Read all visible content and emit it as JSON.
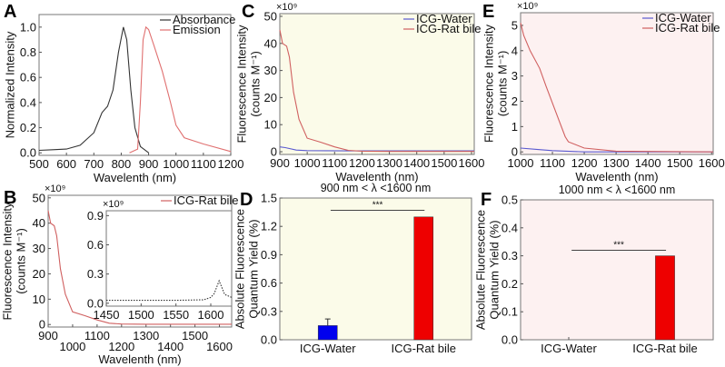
{
  "colors": {
    "absorbance": "#333333",
    "emission": "#e07070",
    "water": "#5a5ad0",
    "bile": "#d06060",
    "bar_water": "#0000ee",
    "bar_bile": "#ee0000",
    "bg_cd": "#fbfbe9",
    "bg_ef": "#fdf1f1",
    "inset_line": "#333333"
  },
  "inset_photo": "cuvette-photo",
  "chart_data": [
    {
      "id": "A",
      "letter": "A",
      "type": "line",
      "xlabel": "Wavelenth (nm)",
      "ylabel": [
        "Normalized Intensity"
      ],
      "multiplier": "",
      "xlim": [
        500,
        1200
      ],
      "ylim": [
        -0.02,
        1.1
      ],
      "xticks": [
        "500",
        "600",
        "700",
        "800",
        "900",
        "1000",
        "1100",
        "1200"
      ],
      "yticks": [
        "0.0",
        "0.2",
        "0.4",
        "0.6",
        "0.8",
        "1.0"
      ],
      "legend": [
        "Absorbance",
        "Emission"
      ],
      "legend_position": "top-right",
      "series": [
        {
          "name": "Absorbance",
          "color": "absorbance",
          "x": [
            500,
            550,
            600,
            650,
            700,
            730,
            750,
            770,
            790,
            808,
            820,
            835,
            850,
            870,
            900
          ],
          "y": [
            0.02,
            0.025,
            0.03,
            0.06,
            0.16,
            0.32,
            0.37,
            0.5,
            0.8,
            1.0,
            0.9,
            0.5,
            0.2,
            0.05,
            0.0
          ]
        },
        {
          "name": "Emission",
          "color": "emission",
          "x": [
            830,
            860,
            870,
            880,
            890,
            900,
            920,
            950,
            980,
            1000,
            1030,
            1100,
            1200
          ],
          "y": [
            0,
            0.03,
            0.4,
            0.9,
            1.0,
            0.98,
            0.85,
            0.65,
            0.4,
            0.22,
            0.12,
            0.07,
            0.01
          ]
        }
      ]
    },
    {
      "id": "B",
      "letter": "B",
      "type": "line",
      "xlabel": "Wavelenth (nm)",
      "ylabel": [
        "Fluorescence Intensity",
        "(counts M⁻¹)"
      ],
      "multiplier": "×10⁹",
      "xlim": [
        900,
        1650
      ],
      "ylim": [
        -1,
        51
      ],
      "xticks": [
        "900",
        "1000",
        "1100",
        "1200",
        "1300",
        "1400",
        "1500",
        "1600"
      ],
      "yticks": [
        "0",
        "10",
        "20",
        "30",
        "40",
        "50"
      ],
      "legend": [
        "ICG-Rat bile"
      ],
      "legend_position": "top-right",
      "series": [
        {
          "name": "ICG-Rat bile",
          "color": "bile",
          "x": [
            900,
            910,
            925,
            935,
            950,
            970,
            1000,
            1050,
            1100,
            1150,
            1200,
            1300,
            1650
          ],
          "y": [
            45,
            40,
            39,
            35,
            22,
            12,
            5,
            3.5,
            1.8,
            0.5,
            0.2,
            0.1,
            0.1
          ]
        }
      ]
    },
    {
      "id": "Binset",
      "letter": "",
      "type": "line",
      "xlabel": "",
      "ylabel": [],
      "multiplier": "×10⁹",
      "xlim": [
        1450,
        1630
      ],
      "ylim": [
        -0.03,
        0.95
      ],
      "xticks": [
        "1450",
        "1500",
        "1550",
        "1600"
      ],
      "yticks": [
        "0.0",
        "0.3",
        "0.6",
        "0.9"
      ],
      "legend": [],
      "series": [
        {
          "name": "",
          "color": "inset_line",
          "x": [
            1450,
            1500,
            1550,
            1590,
            1600,
            1605,
            1612,
            1620,
            1630
          ],
          "y": [
            0.03,
            0.03,
            0.03,
            0.035,
            0.06,
            0.1,
            0.23,
            0.09,
            0.06
          ]
        }
      ]
    },
    {
      "id": "C",
      "letter": "C",
      "type": "line",
      "xlabel": "Wavelenth (nm)",
      "ylabel": [
        "Fluorescence Intensity",
        "(counts M⁻¹)"
      ],
      "multiplier": "×10⁹",
      "xlim": [
        900,
        1610
      ],
      "ylim": [
        -1,
        51
      ],
      "xticks": [
        "900",
        "1000",
        "1100",
        "1200",
        "1300",
        "1400",
        "1500",
        "1600"
      ],
      "yticks": [
        "0",
        "10",
        "20",
        "30",
        "40",
        "50"
      ],
      "legend": [
        "ICG-Water",
        "ICG-Rat bile"
      ],
      "legend_position": "top-right",
      "background": "bg_cd",
      "series": [
        {
          "name": "ICG-Water",
          "color": "water",
          "x": [
            900,
            920,
            960,
            1000,
            1200,
            1610
          ],
          "y": [
            1.8,
            1.5,
            0.6,
            0.4,
            0.3,
            0.3
          ]
        },
        {
          "name": "ICG-Rat bile",
          "color": "bile",
          "x": [
            900,
            910,
            925,
            935,
            950,
            970,
            1000,
            1050,
            1100,
            1150,
            1200,
            1300,
            1610
          ],
          "y": [
            45,
            40,
            39,
            35,
            22,
            12,
            5,
            3.5,
            1.8,
            0.5,
            0.2,
            0.1,
            0.1
          ]
        }
      ]
    },
    {
      "id": "D",
      "letter": "D",
      "type": "bar",
      "title": "900 nm < λ <1600 nm",
      "xlabel": "",
      "ylabel": [
        "Absolute Fluorescence",
        "Quantum Yield (%)"
      ],
      "multiplier": "",
      "ylim": [
        0,
        1.5
      ],
      "yticks": [
        "0.0",
        "0.3",
        "0.6",
        "0.9",
        "1.2",
        "1.5"
      ],
      "categories": [
        "ICG-Water",
        "ICG-Rat bile"
      ],
      "values": [
        0.15,
        1.3
      ],
      "errors": [
        0.07,
        0
      ],
      "bar_colors": [
        "bar_water",
        "bar_bile"
      ],
      "significance": "***",
      "sig_level": 1.37,
      "background": "bg_cd"
    },
    {
      "id": "E",
      "letter": "E",
      "type": "line",
      "xlabel": "Wavelenth (nm)",
      "ylabel": [
        "Fluorescence Intensity",
        "(counts M⁻¹)"
      ],
      "multiplier": "×10⁹",
      "xlim": [
        1000,
        1605
      ],
      "ylim": [
        -0.1,
        5.5
      ],
      "xticks": [
        "1000",
        "1100",
        "1200",
        "1300",
        "1400",
        "1500",
        "1600"
      ],
      "yticks": [
        "0",
        "1",
        "2",
        "3",
        "4",
        "5"
      ],
      "legend": [
        "ICG-Water",
        "ICG-Rat bile"
      ],
      "legend_position": "top-right",
      "background": "bg_ef",
      "series": [
        {
          "name": "ICG-Water",
          "color": "water",
          "x": [
            1000,
            1050,
            1100,
            1200,
            1605
          ],
          "y": [
            0.15,
            0.1,
            0.05,
            0.0,
            0.0
          ]
        },
        {
          "name": "ICG-Rat bile",
          "color": "bile",
          "x": [
            1000,
            1010,
            1030,
            1060,
            1080,
            1110,
            1140,
            1150,
            1200,
            1300,
            1605
          ],
          "y": [
            5.1,
            4.6,
            4.0,
            3.3,
            2.6,
            1.6,
            0.6,
            0.4,
            0.15,
            0.03,
            0.0
          ]
        }
      ]
    },
    {
      "id": "F",
      "letter": "F",
      "type": "bar",
      "title": "1000 nm < λ <1600 nm",
      "xlabel": "",
      "ylabel": [
        "Absolute Fluorescence",
        "Quantum Yield (%)"
      ],
      "multiplier": "",
      "ylim": [
        0,
        0.5
      ],
      "yticks": [
        "0.0",
        "0.1",
        "0.2",
        "0.3",
        "0.4",
        "0.5"
      ],
      "categories": [
        "ICG-Water",
        "ICG-Rat bile"
      ],
      "values": [
        0,
        0.3
      ],
      "errors": [
        0,
        0
      ],
      "bar_colors": [
        "bar_water",
        "bar_bile"
      ],
      "significance": "***",
      "sig_level": 0.32,
      "background": "bg_ef"
    }
  ]
}
